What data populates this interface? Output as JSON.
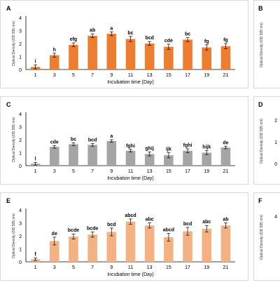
{
  "panels": [
    {
      "letter": "A",
      "color": "#ED7D31",
      "chart_data": {
        "type": "bar",
        "title": "",
        "xlabel": "Incubation time (Day)",
        "ylabel": "Optical Density (OD 595 nm)",
        "ylim": [
          0,
          4
        ],
        "yticks": [
          "0",
          "1",
          "2",
          "3",
          "4"
        ],
        "categories": [
          "1",
          "3",
          "5",
          "7",
          "9",
          "11",
          "13",
          "15",
          "17",
          "19",
          "21"
        ],
        "values": [
          0.2,
          1.1,
          1.9,
          2.6,
          2.75,
          2.35,
          2.0,
          1.75,
          2.3,
          1.7,
          1.8
        ],
        "errors": [
          0.15,
          0.15,
          0.15,
          0.15,
          0.15,
          0.2,
          0.15,
          0.2,
          0.15,
          0.2,
          0.2
        ],
        "labels": [
          "i",
          "h",
          "efg",
          "ab",
          "a",
          "bc",
          "bcd",
          "cde",
          "bc",
          "fg",
          "fg"
        ],
        "grid": false
      }
    },
    {
      "letter": "C",
      "color": "#A5A5A5",
      "chart_data": {
        "type": "bar",
        "title": "",
        "xlabel": "Incubation time (Day)",
        "ylabel": "Optical Density (OD 595 nm)",
        "ylim": [
          0,
          4
        ],
        "yticks": [
          "0",
          "1",
          "2",
          "3",
          "4"
        ],
        "categories": [
          "1",
          "3",
          "5",
          "7",
          "9",
          "11",
          "13",
          "15",
          "17",
          "19",
          "21"
        ],
        "values": [
          0.15,
          1.45,
          1.65,
          1.6,
          1.9,
          1.15,
          0.9,
          0.8,
          1.15,
          1.0,
          1.4
        ],
        "errors": [
          0.1,
          0.1,
          0.1,
          0.1,
          0.1,
          0.1,
          0.15,
          0.2,
          0.15,
          0.15,
          0.1
        ],
        "labels": [
          "l",
          "cde",
          "bc",
          "bcd",
          "a",
          "fghi",
          "ghij",
          "ijk",
          "fghi",
          "hijk",
          "de"
        ],
        "grid": false
      }
    },
    {
      "letter": "E",
      "color": "#F4B183",
      "chart_data": {
        "type": "bar",
        "title": "",
        "xlabel": "Incubation time (Day)",
        "ylabel": "Optical Density (OD 595 nm)",
        "ylim": [
          0,
          4
        ],
        "yticks": [
          "0",
          "1",
          "2",
          "3",
          "4"
        ],
        "categories": [
          "1",
          "3",
          "5",
          "7",
          "9",
          "11",
          "13",
          "15",
          "17",
          "19",
          "21"
        ],
        "values": [
          0.2,
          1.6,
          1.95,
          2.1,
          2.3,
          3.1,
          2.8,
          1.9,
          2.35,
          2.55,
          2.8
        ],
        "errors": [
          0.1,
          0.3,
          0.2,
          0.2,
          0.3,
          0.2,
          0.2,
          0.3,
          0.3,
          0.25,
          0.2
        ],
        "labels": [
          "f",
          "de",
          "bcde",
          "bcde",
          "bcd",
          "abcd",
          "abc",
          "abcd",
          "bcd",
          "abc",
          "ab"
        ],
        "grid": false
      }
    }
  ],
  "side_panels": [
    {
      "letter": "B",
      "ylabel": "Optical Density (OD 595 nm)",
      "ticks": []
    },
    {
      "letter": "D",
      "ylabel": "Optical Density (OD 595 nm)",
      "ticks": [
        "2",
        "1",
        "0"
      ]
    },
    {
      "letter": "F",
      "ylabel": "Optical Density (OD 595 nm)",
      "ticks": [
        "4"
      ]
    }
  ]
}
